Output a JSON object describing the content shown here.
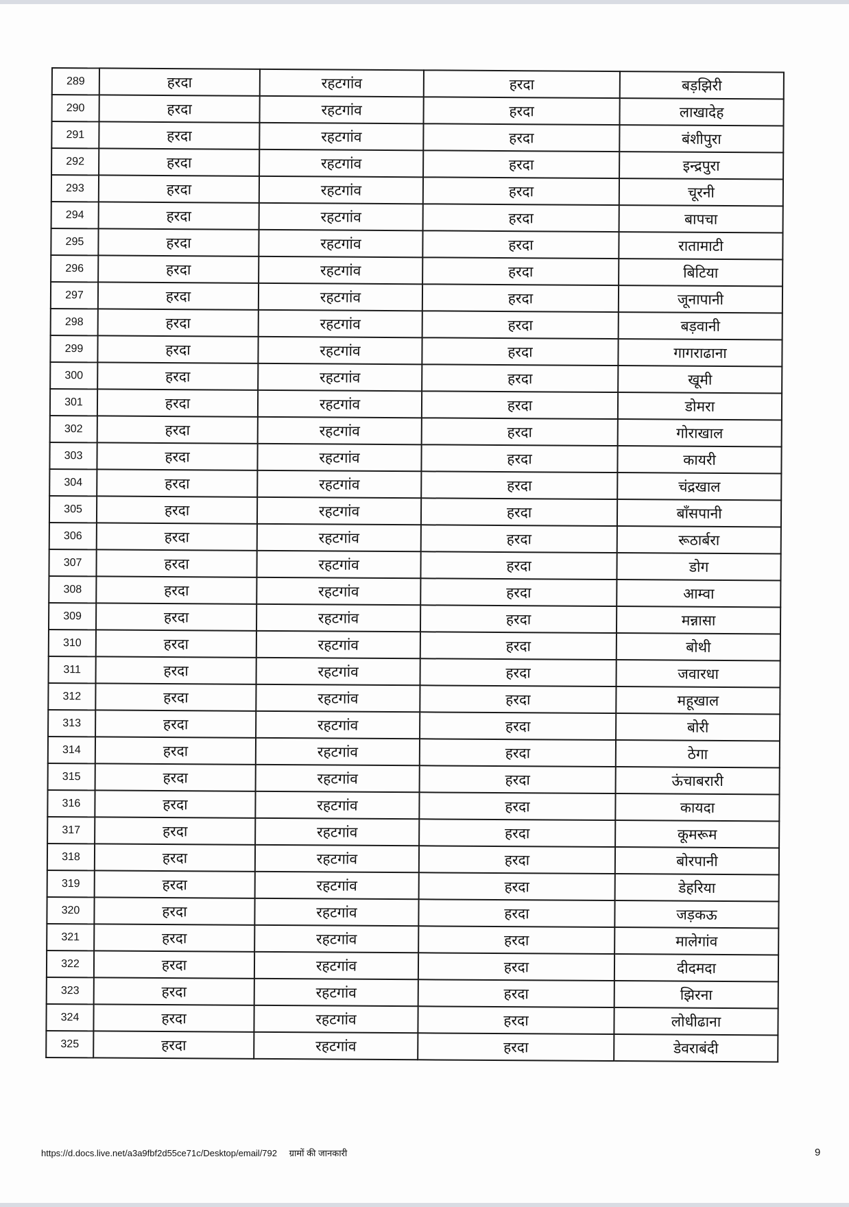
{
  "rows": [
    {
      "sn": "289",
      "district": "हरदा",
      "block": "रहटगांव",
      "tehsil": "हरदा",
      "village": "बड़झिरी"
    },
    {
      "sn": "290",
      "district": "हरदा",
      "block": "रहटगांव",
      "tehsil": "हरदा",
      "village": "लाखादेह"
    },
    {
      "sn": "291",
      "district": "हरदा",
      "block": "रहटगांव",
      "tehsil": "हरदा",
      "village": "बंशीपुरा"
    },
    {
      "sn": "292",
      "district": "हरदा",
      "block": "रहटगांव",
      "tehsil": "हरदा",
      "village": "इन्द्रपुरा"
    },
    {
      "sn": "293",
      "district": "हरदा",
      "block": "रहटगांव",
      "tehsil": "हरदा",
      "village": "चूरनी"
    },
    {
      "sn": "294",
      "district": "हरदा",
      "block": "रहटगांव",
      "tehsil": "हरदा",
      "village": "बापचा"
    },
    {
      "sn": "295",
      "district": "हरदा",
      "block": "रहटगांव",
      "tehsil": "हरदा",
      "village": "रातामाटी"
    },
    {
      "sn": "296",
      "district": "हरदा",
      "block": "रहटगांव",
      "tehsil": "हरदा",
      "village": "बिटिया"
    },
    {
      "sn": "297",
      "district": "हरदा",
      "block": "रहटगांव",
      "tehsil": "हरदा",
      "village": "जूनापानी"
    },
    {
      "sn": "298",
      "district": "हरदा",
      "block": "रहटगांव",
      "tehsil": "हरदा",
      "village": "बड़वानी"
    },
    {
      "sn": "299",
      "district": "हरदा",
      "block": "रहटगांव",
      "tehsil": "हरदा",
      "village": "गागराढाना"
    },
    {
      "sn": "300",
      "district": "हरदा",
      "block": "रहटगांव",
      "tehsil": "हरदा",
      "village": "खूमी"
    },
    {
      "sn": "301",
      "district": "हरदा",
      "block": "रहटगांव",
      "tehsil": "हरदा",
      "village": "डोमरा"
    },
    {
      "sn": "302",
      "district": "हरदा",
      "block": "रहटगांव",
      "tehsil": "हरदा",
      "village": "गोराखाल"
    },
    {
      "sn": "303",
      "district": "हरदा",
      "block": "रहटगांव",
      "tehsil": "हरदा",
      "village": "कायरी"
    },
    {
      "sn": "304",
      "district": "हरदा",
      "block": "रहटगांव",
      "tehsil": "हरदा",
      "village": "चंद्रखाल"
    },
    {
      "sn": "305",
      "district": "हरदा",
      "block": "रहटगांव",
      "tehsil": "हरदा",
      "village": "बाँसपानी"
    },
    {
      "sn": "306",
      "district": "हरदा",
      "block": "रहटगांव",
      "tehsil": "हरदा",
      "village": "रूठार्बरा"
    },
    {
      "sn": "307",
      "district": "हरदा",
      "block": "रहटगांव",
      "tehsil": "हरदा",
      "village": "डोग"
    },
    {
      "sn": "308",
      "district": "हरदा",
      "block": "रहटगांव",
      "tehsil": "हरदा",
      "village": "आम्वा"
    },
    {
      "sn": "309",
      "district": "हरदा",
      "block": "रहटगांव",
      "tehsil": "हरदा",
      "village": "मन्नासा"
    },
    {
      "sn": "310",
      "district": "हरदा",
      "block": "रहटगांव",
      "tehsil": "हरदा",
      "village": "बोथी"
    },
    {
      "sn": "311",
      "district": "हरदा",
      "block": "रहटगांव",
      "tehsil": "हरदा",
      "village": "जवारधा"
    },
    {
      "sn": "312",
      "district": "हरदा",
      "block": "रहटगांव",
      "tehsil": "हरदा",
      "village": "महूखाल"
    },
    {
      "sn": "313",
      "district": "हरदा",
      "block": "रहटगांव",
      "tehsil": "हरदा",
      "village": "बोरी"
    },
    {
      "sn": "314",
      "district": "हरदा",
      "block": "रहटगांव",
      "tehsil": "हरदा",
      "village": "ठेगा"
    },
    {
      "sn": "315",
      "district": "हरदा",
      "block": "रहटगांव",
      "tehsil": "हरदा",
      "village": "ऊंचाबरारी"
    },
    {
      "sn": "316",
      "district": "हरदा",
      "block": "रहटगांव",
      "tehsil": "हरदा",
      "village": "कायदा"
    },
    {
      "sn": "317",
      "district": "हरदा",
      "block": "रहटगांव",
      "tehsil": "हरदा",
      "village": "कूमरूम"
    },
    {
      "sn": "318",
      "district": "हरदा",
      "block": "रहटगांव",
      "tehsil": "हरदा",
      "village": "बोरपानी"
    },
    {
      "sn": "319",
      "district": "हरदा",
      "block": "रहटगांव",
      "tehsil": "हरदा",
      "village": "डेहरिया"
    },
    {
      "sn": "320",
      "district": "हरदा",
      "block": "रहटगांव",
      "tehsil": "हरदा",
      "village": "जड़कऊ"
    },
    {
      "sn": "321",
      "district": "हरदा",
      "block": "रहटगांव",
      "tehsil": "हरदा",
      "village": "मालेगांव"
    },
    {
      "sn": "322",
      "district": "हरदा",
      "block": "रहटगांव",
      "tehsil": "हरदा",
      "village": "दीदमदा"
    },
    {
      "sn": "323",
      "district": "हरदा",
      "block": "रहटगांव",
      "tehsil": "हरदा",
      "village": "झिरना"
    },
    {
      "sn": "324",
      "district": "हरदा",
      "block": "रहटगांव",
      "tehsil": "हरदा",
      "village": "लोधीढाना"
    },
    {
      "sn": "325",
      "district": "हरदा",
      "block": "रहटगांव",
      "tehsil": "हरदा",
      "village": "डेवराबंदी"
    }
  ],
  "footer": {
    "url": "https://d.docs.live.net/a3a9fbf2d55ce71c/Desktop/email/792",
    "title": "ग्रामों की जानकारी",
    "page_number": "9"
  }
}
